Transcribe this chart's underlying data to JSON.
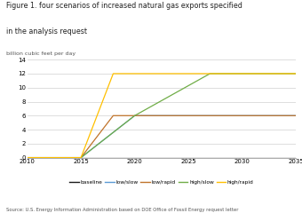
{
  "title_line1": "Figure 1. four scenarios of increased natural gas exports specified",
  "title_line2": "in the analysis request",
  "subtitle": "billion cubic feet per day",
  "source": "Source: U.S. Energy Information Administration based on DOE Office of Fossil Energy request letter",
  "xlim": [
    2010,
    2035
  ],
  "ylim": [
    0,
    14
  ],
  "yticks": [
    0,
    2,
    4,
    6,
    8,
    10,
    12,
    14
  ],
  "xticks": [
    2010,
    2015,
    2020,
    2025,
    2030,
    2035
  ],
  "series": {
    "baseline": {
      "color": "#1a1a1a",
      "x": [
        2010,
        2035
      ],
      "y": [
        0,
        0
      ]
    },
    "low/slow": {
      "color": "#5b9bd5",
      "x": [
        2010,
        2015,
        2020,
        2035
      ],
      "y": [
        0,
        0,
        6,
        6
      ]
    },
    "low/rapid": {
      "color": "#c0732a",
      "x": [
        2010,
        2015,
        2018,
        2035
      ],
      "y": [
        0,
        0,
        6,
        6
      ]
    },
    "high/slow": {
      "color": "#70ad47",
      "x": [
        2010,
        2015,
        2020,
        2027,
        2035
      ],
      "y": [
        0,
        0,
        6,
        12,
        12
      ]
    },
    "high/rapid": {
      "color": "#ffc000",
      "x": [
        2010,
        2015,
        2018,
        2035
      ],
      "y": [
        0,
        0,
        12,
        12
      ]
    }
  },
  "legend_order": [
    "baseline",
    "low/slow",
    "low/rapid",
    "high/slow",
    "high/rapid"
  ],
  "background_color": "#ffffff",
  "grid_color": "#d0d0d0",
  "title_fontsize": 5.8,
  "subtitle_fontsize": 4.5,
  "tick_fontsize": 5.0,
  "legend_fontsize": 4.2,
  "source_fontsize": 3.8
}
